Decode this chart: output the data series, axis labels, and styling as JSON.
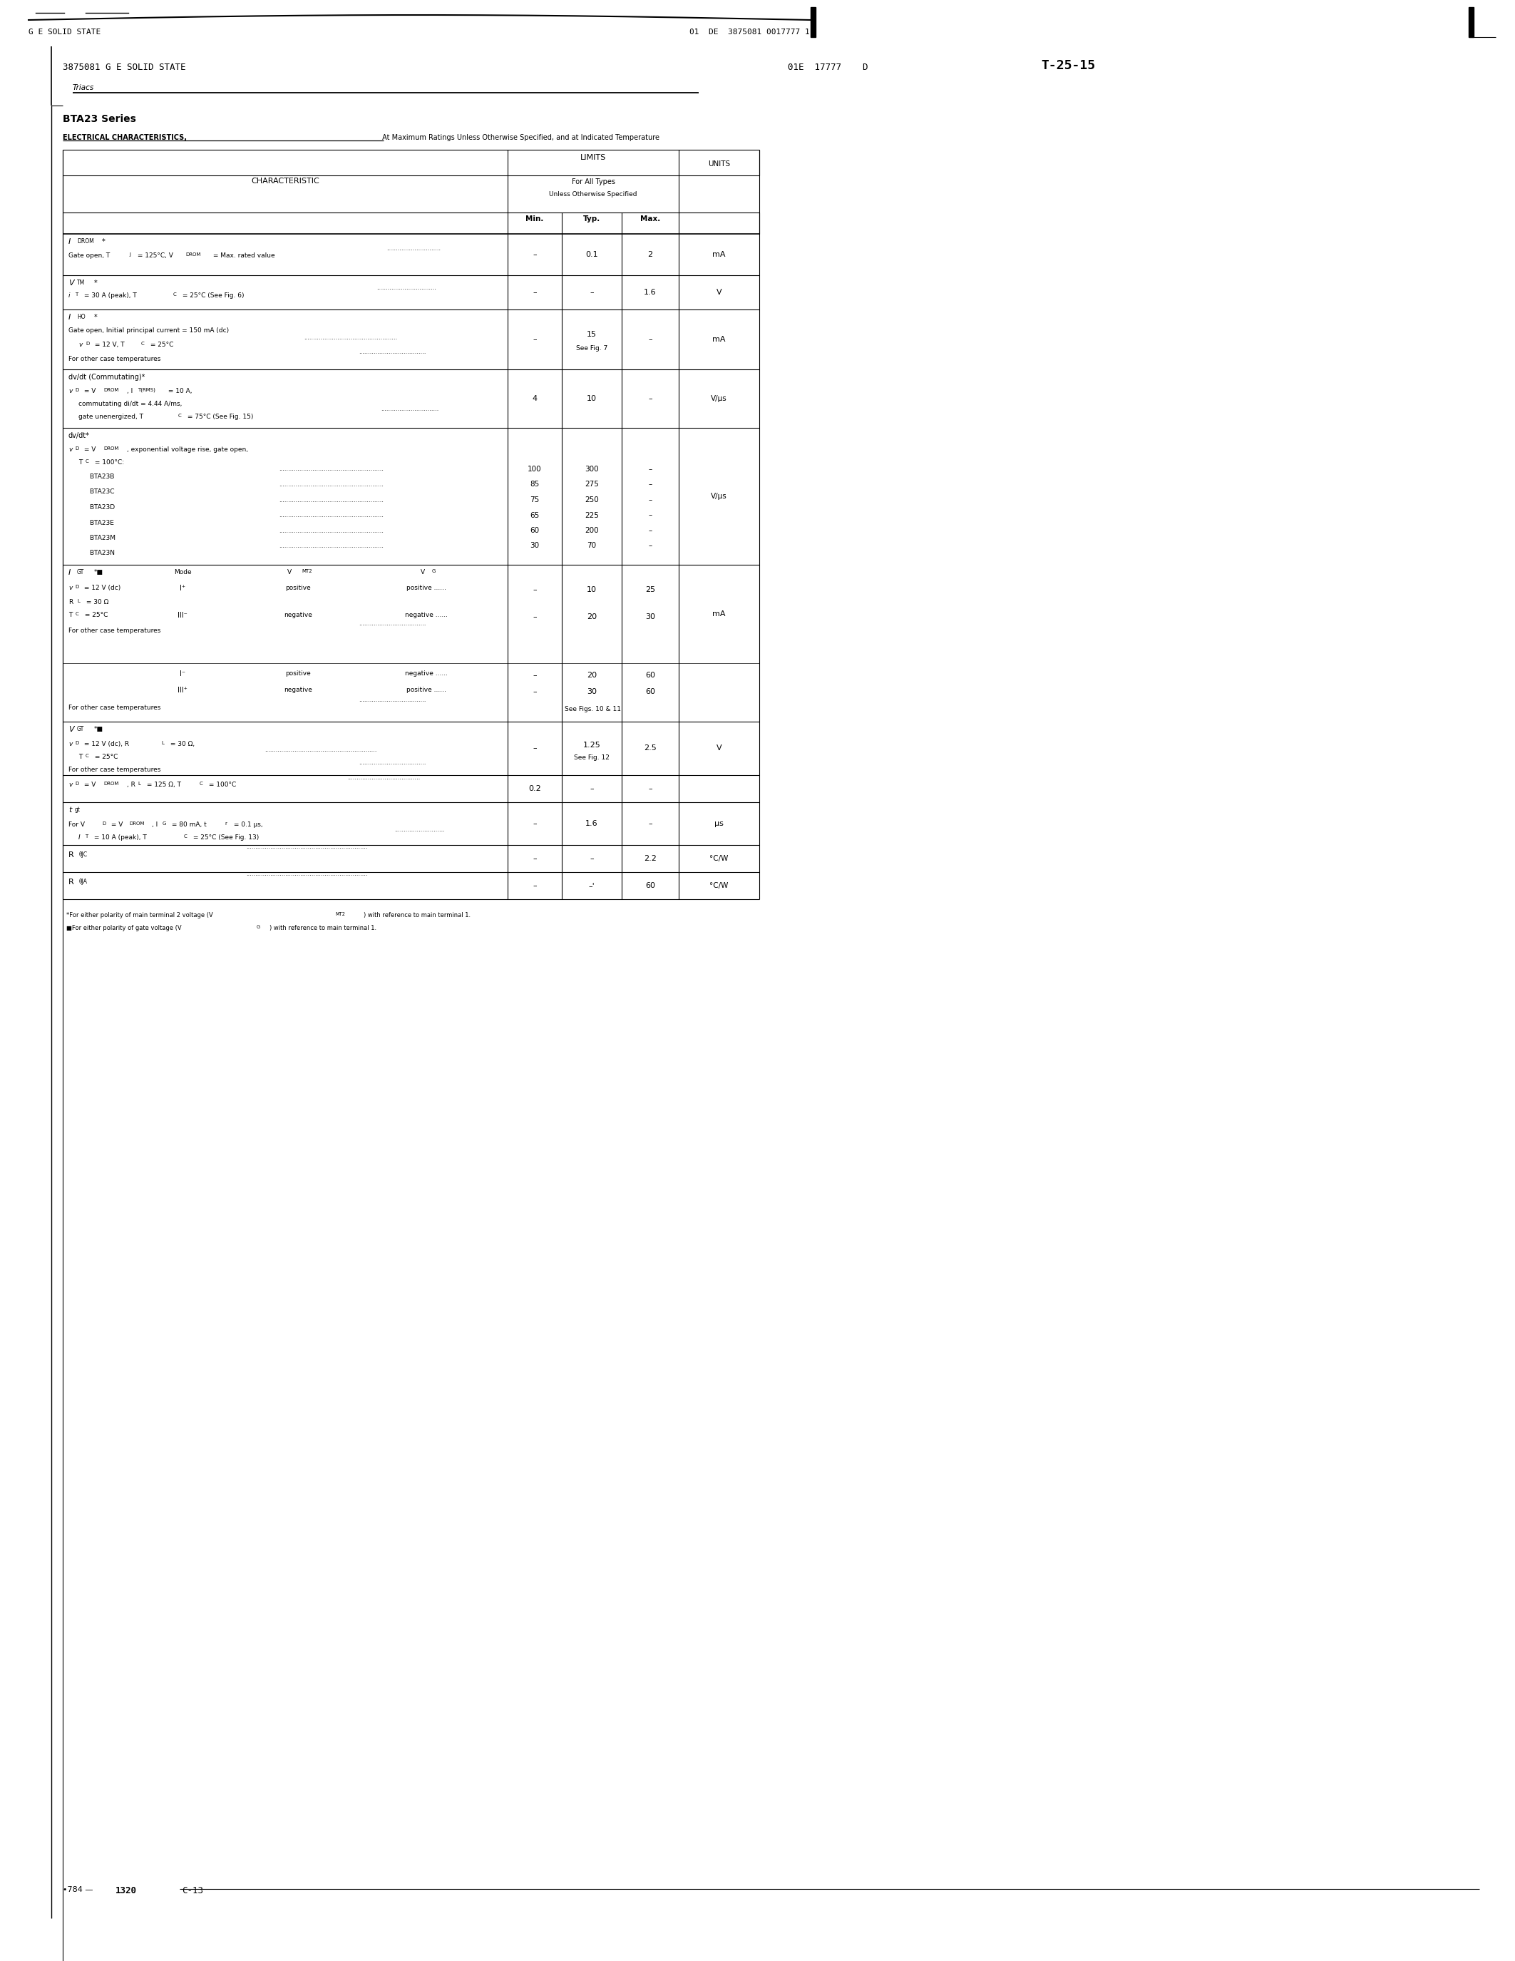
{
  "bg_color": "#ffffff",
  "page_width": 21.25,
  "page_height": 27.5,
  "header_line_text": "G E SOLID STATE",
  "header_right_text": "01  DE  3875081 0017777 1",
  "subheader_left": "3875081 G E SOLID STATE",
  "subheader_right": "01E  17777    D  T-25-15",
  "triacs_label": "Triacs",
  "series_title": "BTA23 Series",
  "elec_char_title": "ELECTRICAL CHARACTERISTICS, At Maximum Ratings Unless Otherwise Specified, and at Indicated Temperature",
  "footer_left": "784 —",
  "footer_center": "1320    C-13"
}
